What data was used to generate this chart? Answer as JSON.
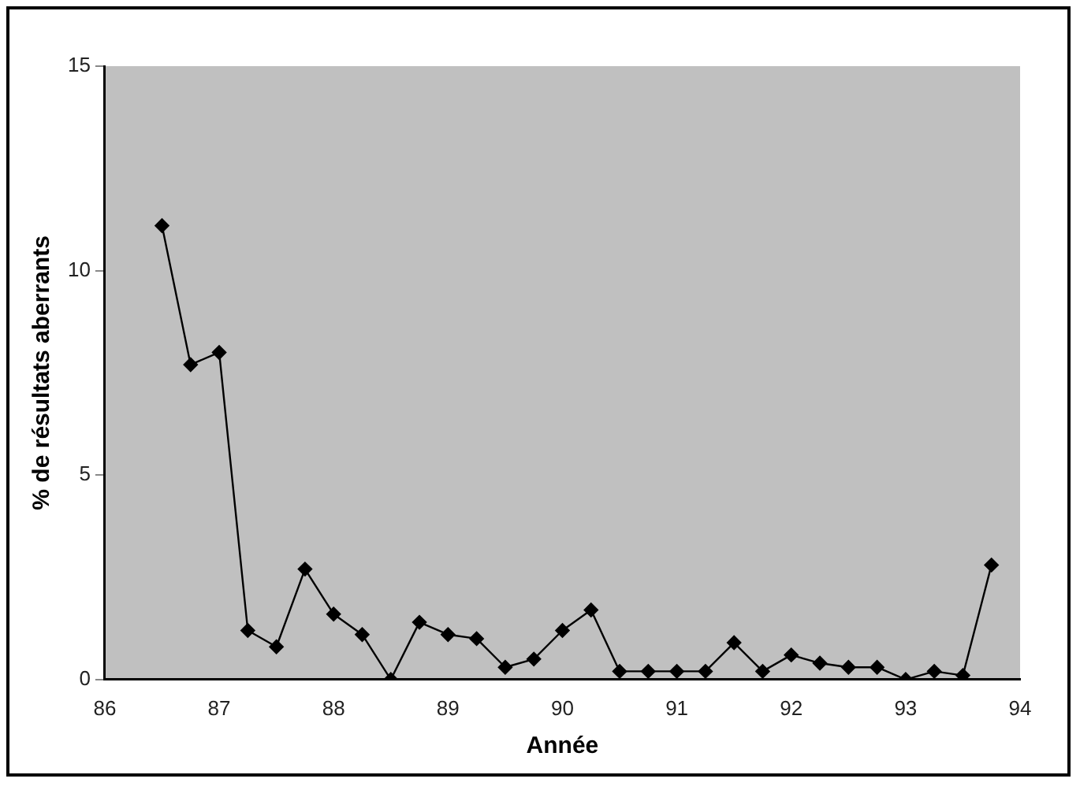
{
  "chart_data": {
    "type": "line",
    "xlabel": "Année",
    "ylabel": "% de résultats aberrants",
    "x": [
      86.5,
      86.75,
      87,
      87.25,
      87.5,
      87.75,
      88,
      88.25,
      88.5,
      88.75,
      89,
      89.25,
      89.5,
      89.75,
      90,
      90.25,
      90.5,
      90.75,
      91,
      91.25,
      91.5,
      91.75,
      92,
      92.25,
      92.5,
      92.75,
      93,
      93.25,
      93.5,
      93.75
    ],
    "series": [
      {
        "color": "#000000",
        "values": [
          11.1,
          7.7,
          8.0,
          1.2,
          0.8,
          2.7,
          1.6,
          1.1,
          0,
          1.4,
          1.1,
          1.0,
          0.3,
          0.5,
          1.2,
          1.7,
          0.2,
          0.2,
          0.2,
          0.2,
          0.9,
          0.2,
          0.6,
          0.4,
          0.3,
          0.3,
          0,
          0.2,
          0.1,
          2.8
        ]
      }
    ],
    "xlim": [
      86,
      94
    ],
    "xticks": [
      86,
      87,
      88,
      89,
      90,
      91,
      92,
      93,
      94
    ],
    "ylim": [
      0,
      15
    ],
    "yticks": [
      0,
      5,
      10,
      15
    ],
    "grid": false,
    "legend": false,
    "marker": "diamond",
    "line_style": "solid"
  }
}
